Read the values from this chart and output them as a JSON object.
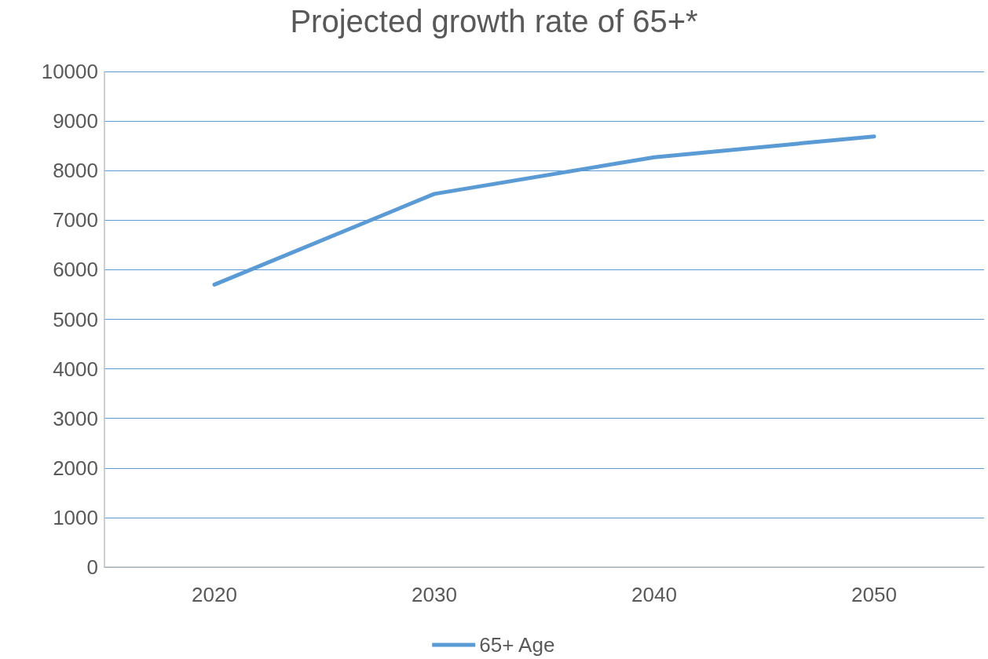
{
  "chart_data": {
    "type": "line",
    "title": "Projected growth rate of 65+*",
    "categories": [
      "2020",
      "2030",
      "2040",
      "2050"
    ],
    "series": [
      {
        "name": "65+ Age",
        "color": "#5b9bd5",
        "values": [
          5700,
          7530,
          8270,
          8690
        ]
      }
    ],
    "ylim": [
      0,
      10000
    ],
    "yticks": [
      0,
      1000,
      2000,
      3000,
      4000,
      5000,
      6000,
      7000,
      8000,
      9000,
      10000
    ],
    "grid": "y",
    "legend": "bottom",
    "marker": "none",
    "line_style": "solid"
  }
}
